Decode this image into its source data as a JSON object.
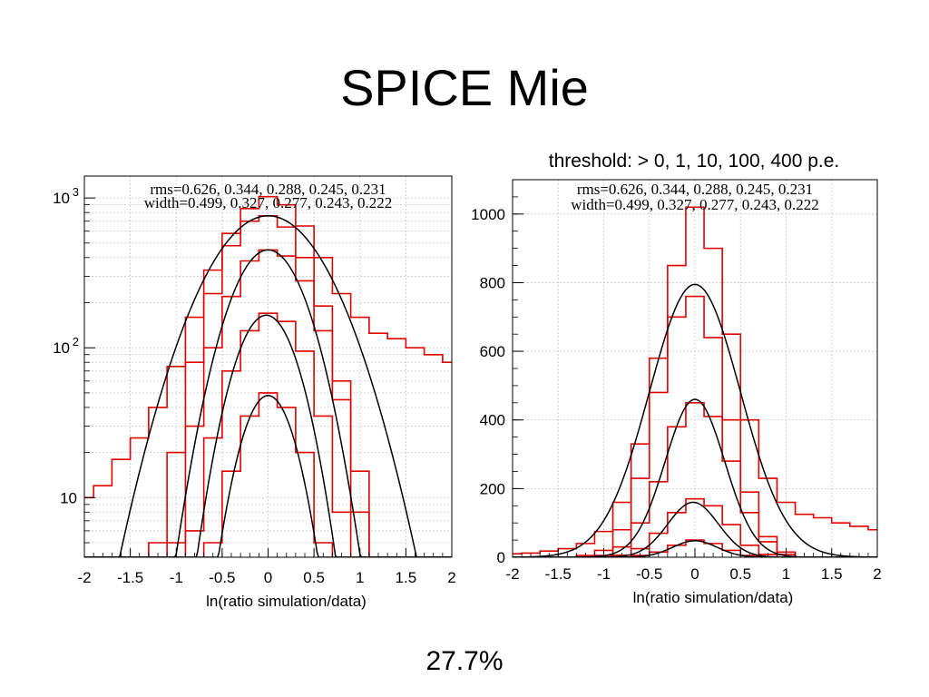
{
  "title": "SPICE Mie",
  "threshold_label": "threshold: > 0, 1, 10, 100, 400 p.e.",
  "footer_value": "27.7%",
  "colors": {
    "histogram": "#e00000",
    "fit": "#000000",
    "grid": "#c8c8c8",
    "frame": "#000000"
  },
  "chart_data": [
    {
      "type": "line",
      "panel": "left",
      "xlabel": "ln(ratio simulation/data)",
      "ylabel": "",
      "yscale": "log",
      "xlim": [
        -2,
        2
      ],
      "ylim": [
        4,
        1400
      ],
      "xticks": [
        -2,
        -1.5,
        -1,
        -0.5,
        0,
        0.5,
        1,
        1.5,
        2
      ],
      "xtick_labels": [
        "-2",
        "-1.5",
        "-1",
        "-0.5",
        "0",
        "0.5",
        "1",
        "1.5",
        "2"
      ],
      "yticks": [
        {
          "value": 10,
          "label": "10",
          "exp": ""
        },
        {
          "value": 100,
          "label": "10",
          "exp": "2"
        },
        {
          "value": 1000,
          "label": "10",
          "exp": "3"
        }
      ],
      "grid": true,
      "annotations": [
        "rms=0.626, 0.344, 0.288, 0.245, 0.231",
        "width=0.499, 0.327, 0.277, 0.243, 0.222"
      ],
      "series": [
        {
          "kind": "hist",
          "x": [
            -2.0,
            -1.8,
            -1.6,
            -1.4,
            -1.2,
            -1.0,
            -0.8,
            -0.6,
            -0.4,
            -0.2,
            0.0,
            0.2,
            0.4,
            0.6,
            0.8,
            1.0,
            1.2,
            1.4,
            1.6,
            1.8,
            2.0
          ],
          "y": [
            10,
            12,
            18,
            25,
            40,
            75,
            160,
            330,
            580,
            850,
            1020,
            900,
            650,
            400,
            230,
            160,
            125,
            115,
            100,
            90,
            80
          ]
        },
        {
          "kind": "hist",
          "x": [
            -1.2,
            -1.0,
            -0.8,
            -0.6,
            -0.4,
            -0.2,
            0.0,
            0.2,
            0.4,
            0.6,
            0.8,
            1.0
          ],
          "y": [
            5,
            20,
            80,
            230,
            480,
            700,
            760,
            640,
            400,
            190,
            60,
            15
          ]
        },
        {
          "kind": "hist",
          "x": [
            -1.0,
            -0.8,
            -0.6,
            -0.4,
            -0.2,
            0.0,
            0.2,
            0.4,
            0.6,
            0.8,
            1.0
          ],
          "y": [
            5,
            30,
            100,
            220,
            380,
            450,
            410,
            280,
            130,
            45,
            8
          ]
        },
        {
          "kind": "hist",
          "x": [
            -0.8,
            -0.6,
            -0.4,
            -0.2,
            0.0,
            0.2,
            0.4,
            0.6,
            0.8
          ],
          "y": [
            6,
            25,
            70,
            130,
            170,
            150,
            95,
            35,
            8
          ]
        },
        {
          "kind": "hist",
          "x": [
            -0.6,
            -0.4,
            -0.2,
            0.0,
            0.2,
            0.4,
            0.6
          ],
          "y": [
            5,
            15,
            35,
            50,
            40,
            20,
            5
          ]
        },
        {
          "kind": "fit",
          "amplitude": 760,
          "mean": 0.0,
          "sigma": 0.499
        },
        {
          "kind": "fit",
          "amplitude": 450,
          "mean": 0.0,
          "sigma": 0.327
        },
        {
          "kind": "fit",
          "amplitude": 165,
          "mean": -0.02,
          "sigma": 0.277
        },
        {
          "kind": "fit",
          "amplitude": 48,
          "mean": 0.0,
          "sigma": 0.243
        }
      ]
    },
    {
      "type": "line",
      "panel": "right",
      "xlabel": "ln(ratio simulation/data)",
      "ylabel": "",
      "yscale": "linear",
      "xlim": [
        -2,
        2
      ],
      "ylim": [
        0,
        1100
      ],
      "xticks": [
        -2,
        -1.5,
        -1,
        -0.5,
        0,
        0.5,
        1,
        1.5,
        2
      ],
      "xtick_labels": [
        "-2",
        "-1.5",
        "-1",
        "-0.5",
        "0",
        "0.5",
        "1",
        "1.5",
        "2"
      ],
      "yticks": [
        {
          "value": 0,
          "label": "0",
          "exp": ""
        },
        {
          "value": 200,
          "label": "200",
          "exp": ""
        },
        {
          "value": 400,
          "label": "400",
          "exp": ""
        },
        {
          "value": 600,
          "label": "600",
          "exp": ""
        },
        {
          "value": 800,
          "label": "800",
          "exp": ""
        },
        {
          "value": 1000,
          "label": "1000",
          "exp": ""
        }
      ],
      "grid": true,
      "annotations": [
        "rms=0.626, 0.344, 0.288, 0.245, 0.231",
        "width=0.499, 0.327, 0.277, 0.243, 0.222"
      ],
      "series": [
        {
          "kind": "hist",
          "x": [
            -2.0,
            -1.8,
            -1.6,
            -1.4,
            -1.2,
            -1.0,
            -0.8,
            -0.6,
            -0.4,
            -0.2,
            0.0,
            0.2,
            0.4,
            0.6,
            0.8,
            1.0,
            1.2,
            1.4,
            1.6,
            1.8,
            2.0
          ],
          "y": [
            10,
            12,
            18,
            25,
            40,
            75,
            160,
            330,
            580,
            850,
            1020,
            900,
            650,
            400,
            230,
            160,
            125,
            115,
            100,
            90,
            80
          ]
        },
        {
          "kind": "hist",
          "x": [
            -1.2,
            -1.0,
            -0.8,
            -0.6,
            -0.4,
            -0.2,
            0.0,
            0.2,
            0.4,
            0.6,
            0.8,
            1.0
          ],
          "y": [
            5,
            20,
            80,
            230,
            480,
            700,
            760,
            640,
            400,
            190,
            60,
            15
          ]
        },
        {
          "kind": "hist",
          "x": [
            -1.0,
            -0.8,
            -0.6,
            -0.4,
            -0.2,
            0.0,
            0.2,
            0.4,
            0.6,
            0.8,
            1.0
          ],
          "y": [
            5,
            30,
            100,
            220,
            380,
            450,
            410,
            280,
            130,
            45,
            8
          ]
        },
        {
          "kind": "hist",
          "x": [
            -0.8,
            -0.6,
            -0.4,
            -0.2,
            0.0,
            0.2,
            0.4,
            0.6,
            0.8
          ],
          "y": [
            6,
            25,
            70,
            130,
            170,
            150,
            95,
            35,
            8
          ]
        },
        {
          "kind": "hist",
          "x": [
            -0.6,
            -0.4,
            -0.2,
            0.0,
            0.2,
            0.4,
            0.6
          ],
          "y": [
            5,
            15,
            35,
            50,
            40,
            20,
            5
          ]
        },
        {
          "kind": "fit",
          "amplitude": 795,
          "mean": 0.0,
          "sigma": 0.499
        },
        {
          "kind": "fit",
          "amplitude": 460,
          "mean": 0.0,
          "sigma": 0.327
        },
        {
          "kind": "fit",
          "amplitude": 160,
          "mean": -0.02,
          "sigma": 0.277
        },
        {
          "kind": "fit",
          "amplitude": 48,
          "mean": 0.0,
          "sigma": 0.243
        }
      ]
    }
  ]
}
